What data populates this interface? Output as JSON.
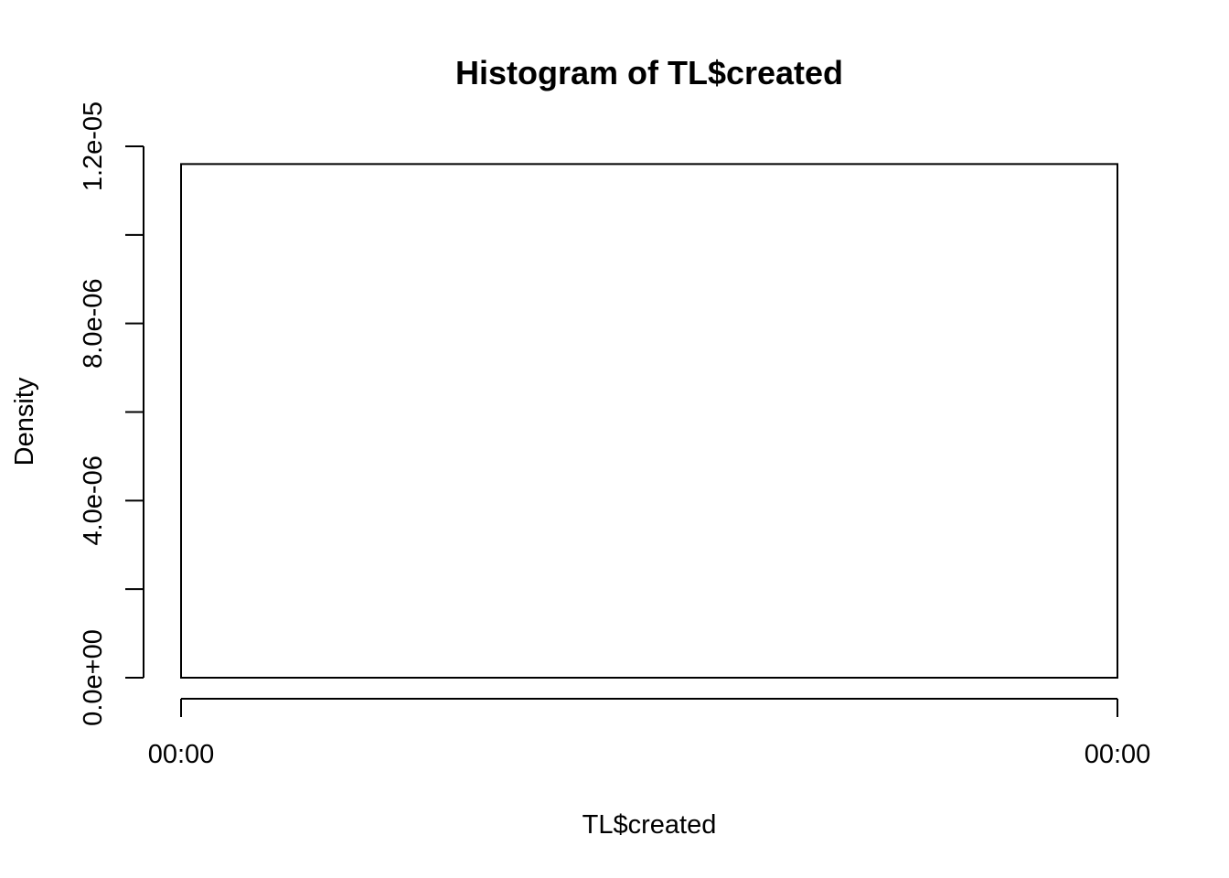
{
  "chart_data": {
    "type": "bar",
    "title": "Histogram of TL$created",
    "xlabel": "TL$created",
    "ylabel": "Density",
    "x_tick_labels": [
      "00:00",
      "00:00"
    ],
    "y_ticks": [
      0,
      2e-06,
      4e-06,
      6e-06,
      8e-06,
      1e-05,
      1.2e-05
    ],
    "y_tick_labels": [
      "0.0e+00",
      "4.0e-06",
      "8.0e-06",
      "1.2e-05"
    ],
    "ylim": [
      0,
      1.2e-05
    ],
    "bars": [
      {
        "density": 1.16e-05
      }
    ],
    "grid": false,
    "legend": "none"
  }
}
